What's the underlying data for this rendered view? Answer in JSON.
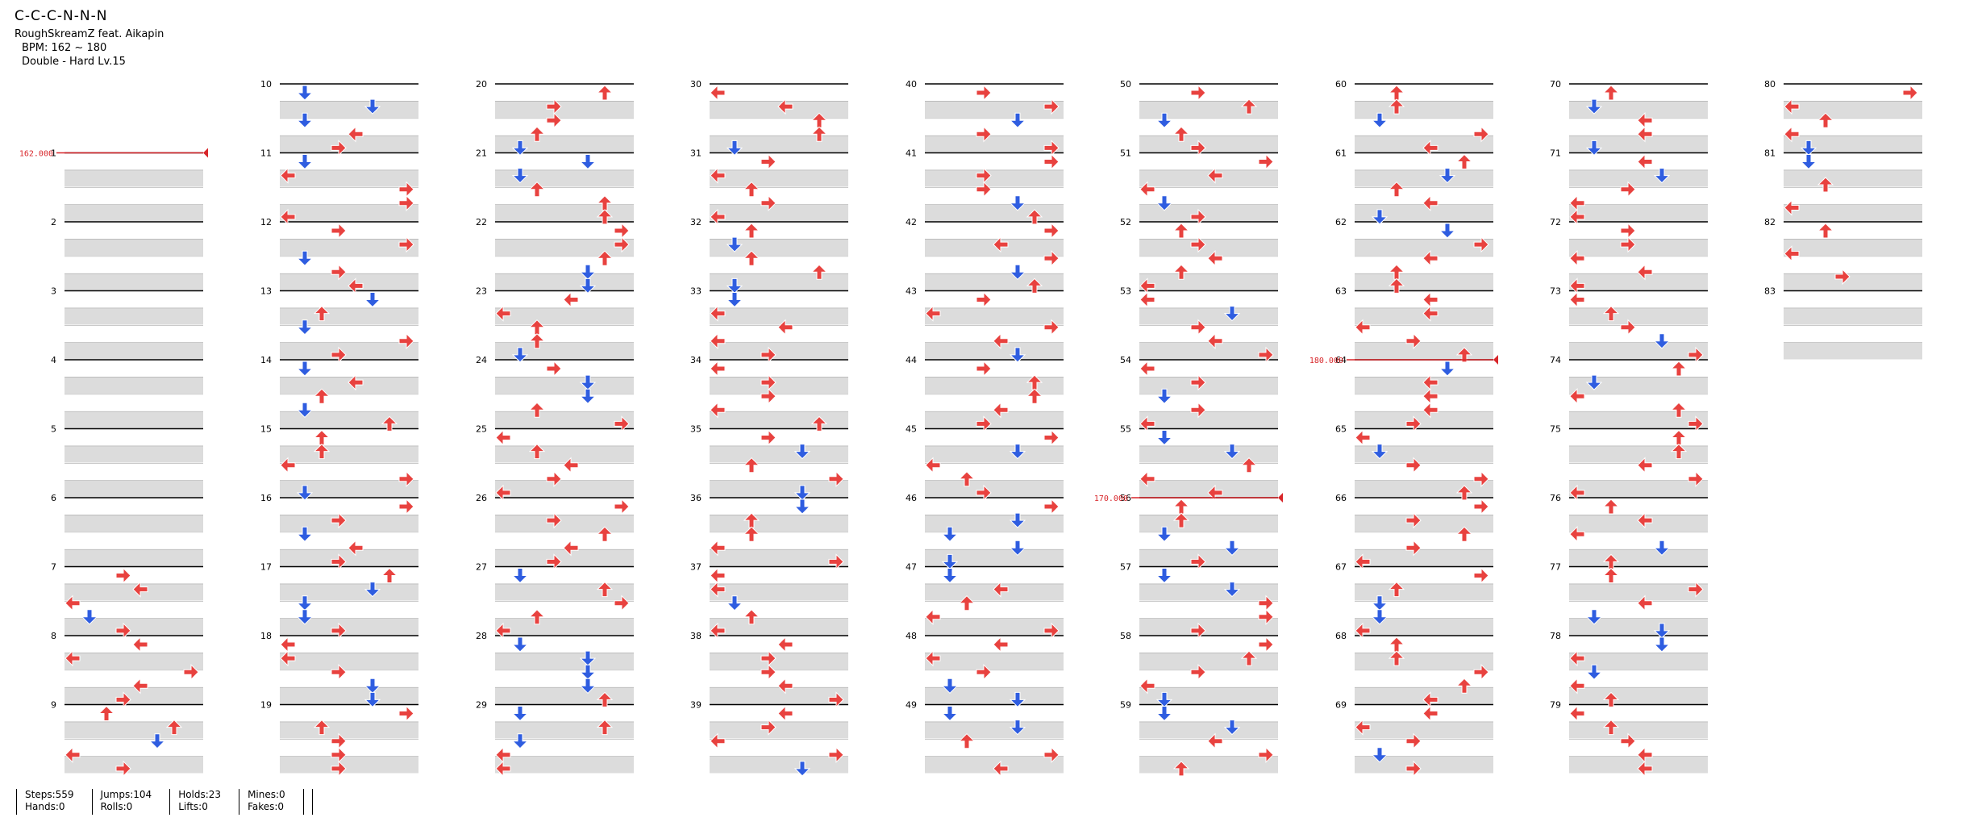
{
  "song": {
    "title": "C-C-C-N-N-N",
    "artist": "RoughSkreamZ feat. Aikapin",
    "bpm_line": "BPM: 162 ~ 180",
    "difficulty_line": "Double - Hard Lv.15"
  },
  "chart": {
    "measure_count": 83,
    "measures_per_column": 10,
    "first_column_start_measure": 0,
    "bpm_changes": [
      {
        "measure": 1,
        "bpm": "162.000"
      },
      {
        "measure": 64,
        "bpm": "180.000"
      },
      {
        "measure": 56,
        "bpm": "170.000"
      }
    ],
    "colors": {
      "left_arrow": "#e8423f",
      "right_arrow": "#e8423f",
      "down_arrow": "#2f5de0",
      "up_arrow": "#e8423f",
      "hold_body": "#8ee08a",
      "mine_like": "#f5e04a",
      "purple_note": "#a64ae0",
      "stripe": "#dcdcdc",
      "measure_line": "#000000",
      "bpm_marker": "#d8262a"
    }
  },
  "stats": {
    "steps": "Steps:559",
    "hands": "Hands:0",
    "jumps": "Jumps:104",
    "rolls": "Rolls:0",
    "holds": "Holds:23",
    "lifts": "Lifts:0",
    "mines": "Mines:0",
    "fakes": "Fakes:0"
  }
}
